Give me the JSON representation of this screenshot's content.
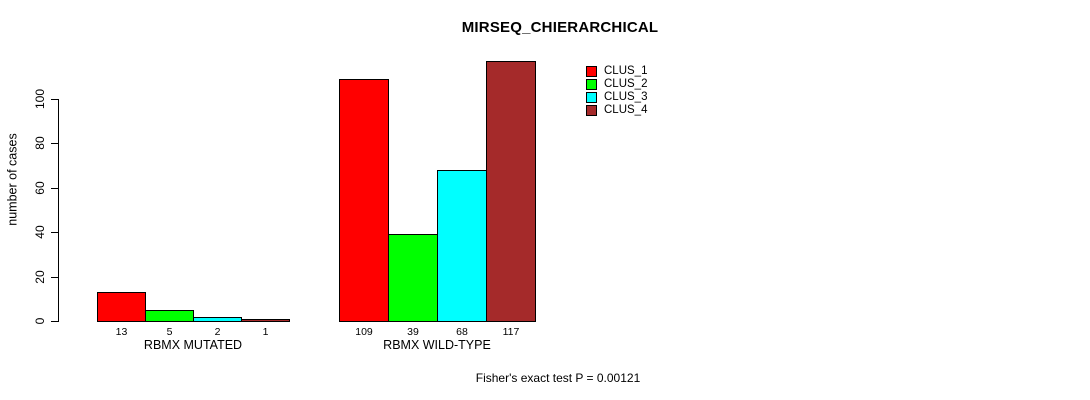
{
  "chart_data": {
    "type": "bar",
    "title": "MIRSEQ_CHIERARCHICAL",
    "ylabel": "number of cases",
    "xlabel": "",
    "categories": [
      "RBMX MUTATED",
      "RBMX WILD-TYPE"
    ],
    "series": [
      {
        "name": "CLUS_1",
        "color": "#FF0000",
        "values": [
          13,
          109
        ]
      },
      {
        "name": "CLUS_2",
        "color": "#00FF00",
        "values": [
          5,
          39
        ]
      },
      {
        "name": "CLUS_3",
        "color": "#00FFFF",
        "values": [
          2,
          68
        ]
      },
      {
        "name": "CLUS_4",
        "color": "#A52A2A",
        "values": [
          1,
          117
        ]
      }
    ],
    "bar_value_labels": [
      [
        13,
        5,
        2,
        1
      ],
      [
        109,
        39,
        68,
        117
      ]
    ],
    "yticks": [
      0,
      20,
      40,
      60,
      80,
      100
    ],
    "ylim": [
      0,
      117
    ],
    "grid": false,
    "legend_position": "top-right",
    "legend_entries": [
      "CLUS_1",
      "CLUS_2",
      "CLUS_3",
      "CLUS_4"
    ],
    "annotation": "Fisher's exact test P = 0.00121",
    "background_color": "#FFFFFF",
    "bar_border_color": "#000000"
  }
}
